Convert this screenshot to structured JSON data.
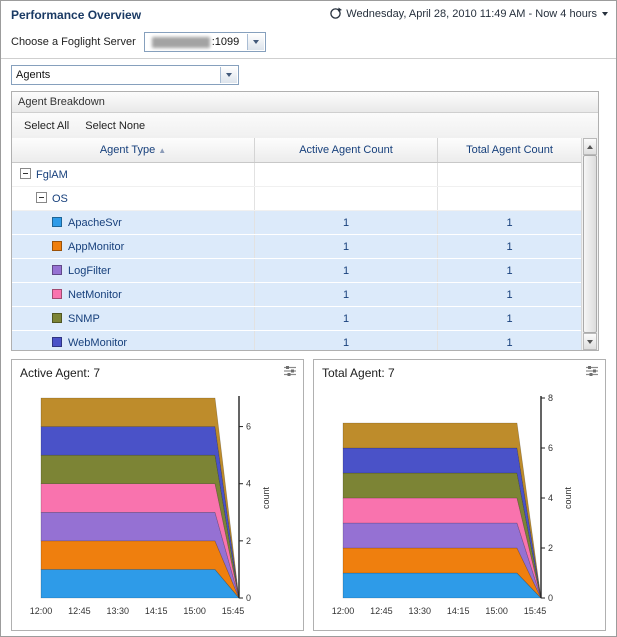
{
  "header": {
    "title": "Performance Overview",
    "time_range": "Wednesday, April 28, 2010 11:49 AM - Now 4 hours"
  },
  "server_picker": {
    "label": "Choose a Foglight Server",
    "value": ":1099"
  },
  "view_selector": {
    "value": "Agents"
  },
  "agent_breakdown": {
    "title": "Agent Breakdown",
    "select_all": "Select All",
    "select_none": "Select None",
    "columns": {
      "agent_type": "Agent Type",
      "active": "Active Agent Count",
      "total": "Total Agent Count"
    },
    "sort_indicator": "▲",
    "tree": [
      {
        "type": "group",
        "indent": 0,
        "label": "FglAM",
        "active": "",
        "total": ""
      },
      {
        "type": "group",
        "indent": 1,
        "label": "OS",
        "active": "",
        "total": ""
      },
      {
        "type": "agent",
        "indent": 2,
        "label": "ApacheSvr",
        "color": "#2E9BE8",
        "active": "1",
        "total": "1"
      },
      {
        "type": "agent",
        "indent": 2,
        "label": "AppMonitor",
        "color": "#EF7F0E",
        "active": "1",
        "total": "1"
      },
      {
        "type": "agent",
        "indent": 2,
        "label": "LogFilter",
        "color": "#9571D3",
        "active": "1",
        "total": "1"
      },
      {
        "type": "agent",
        "indent": 2,
        "label": "NetMonitor",
        "color": "#F973AE",
        "active": "1",
        "total": "1"
      },
      {
        "type": "agent",
        "indent": 2,
        "label": "SNMP",
        "color": "#7C8435",
        "active": "1",
        "total": "1"
      },
      {
        "type": "agent",
        "indent": 2,
        "label": "WebMonitor",
        "color": "#4A52C8",
        "active": "1",
        "total": "1"
      }
    ]
  },
  "chart_data": [
    {
      "type": "area",
      "title": "Active Agent: 7",
      "ylabel": "count",
      "x": [
        "12:00",
        "12:45",
        "13:30",
        "14:15",
        "15:00",
        "15:45"
      ],
      "ylim": [
        0,
        7
      ],
      "yticks": [
        0,
        2,
        4,
        6
      ],
      "legend": "none",
      "series": [
        {
          "name": "ApacheSvr",
          "color": "#2E9BE8",
          "values": [
            1,
            1,
            1,
            1,
            1,
            1
          ]
        },
        {
          "name": "AppMonitor",
          "color": "#EF7F0E",
          "values": [
            1,
            1,
            1,
            1,
            1,
            1
          ]
        },
        {
          "name": "LogFilter",
          "color": "#9571D3",
          "values": [
            1,
            1,
            1,
            1,
            1,
            1
          ]
        },
        {
          "name": "NetMonitor",
          "color": "#F973AE",
          "values": [
            1,
            1,
            1,
            1,
            1,
            1
          ]
        },
        {
          "name": "SNMP",
          "color": "#7C8435",
          "values": [
            1,
            1,
            1,
            1,
            1,
            1
          ]
        },
        {
          "name": "WebMonitor",
          "color": "#4A52C8",
          "values": [
            1,
            1,
            1,
            1,
            1,
            1
          ]
        },
        {
          "name": "FglAM",
          "color": "#BE8C2B",
          "values": [
            1,
            1,
            1,
            1,
            1,
            1
          ]
        }
      ]
    },
    {
      "type": "area",
      "title": "Total Agent: 7",
      "ylabel": "count",
      "x": [
        "12:00",
        "12:45",
        "13:30",
        "14:15",
        "15:00",
        "15:45"
      ],
      "ylim": [
        0,
        8
      ],
      "yticks": [
        0,
        2,
        4,
        6,
        8
      ],
      "legend": "none",
      "series": [
        {
          "name": "ApacheSvr",
          "color": "#2E9BE8",
          "values": [
            1,
            1,
            1,
            1,
            1,
            1
          ]
        },
        {
          "name": "AppMonitor",
          "color": "#EF7F0E",
          "values": [
            1,
            1,
            1,
            1,
            1,
            1
          ]
        },
        {
          "name": "LogFilter",
          "color": "#9571D3",
          "values": [
            1,
            1,
            1,
            1,
            1,
            1
          ]
        },
        {
          "name": "NetMonitor",
          "color": "#F973AE",
          "values": [
            1,
            1,
            1,
            1,
            1,
            1
          ]
        },
        {
          "name": "SNMP",
          "color": "#7C8435",
          "values": [
            1,
            1,
            1,
            1,
            1,
            1
          ]
        },
        {
          "name": "WebMonitor",
          "color": "#4A52C8",
          "values": [
            1,
            1,
            1,
            1,
            1,
            1
          ]
        },
        {
          "name": "FglAM",
          "color": "#BE8C2B",
          "values": [
            1,
            1,
            1,
            1,
            1,
            1
          ]
        }
      ]
    }
  ]
}
